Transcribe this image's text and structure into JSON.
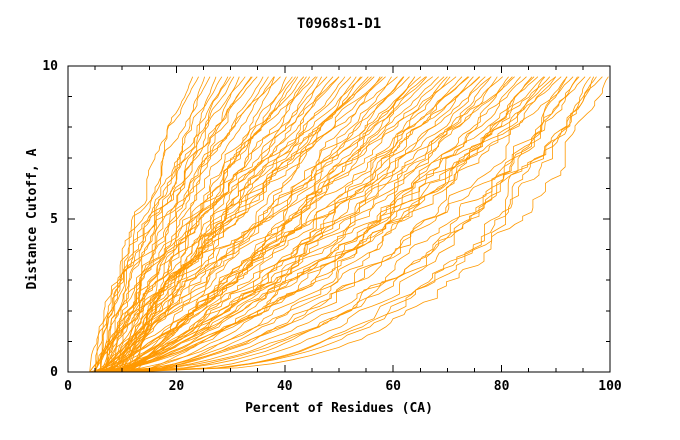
{
  "chart_data": {
    "type": "line",
    "title": "T0968s1-D1",
    "xlabel": "Percent of Residues (CA)",
    "ylabel": "Distance Cutoff, A",
    "xlim": [
      0,
      100
    ],
    "ylim": [
      0,
      10
    ],
    "x_ticks": [
      0,
      20,
      40,
      60,
      80,
      100
    ],
    "y_ticks": [
      0,
      5,
      10
    ],
    "x_minor_step": 5,
    "y_minor_step": 1,
    "grid": false,
    "legend": "none",
    "line_color": "#ff9900",
    "y_curve_max": 9.65,
    "series_format": [
      "x_at_y0",
      "x_at_ytop",
      "shape_exponent"
    ],
    "series": [
      [
        5,
        23,
        1.45
      ],
      [
        7,
        24.1,
        1.72
      ],
      [
        9,
        25.2,
        1.21
      ],
      [
        6,
        26.2,
        1.55
      ],
      [
        11,
        27.3,
        1.09
      ],
      [
        8,
        28.4,
        1.73
      ],
      [
        4,
        29.5,
        1.23
      ],
      [
        10,
        30.6,
        1.42
      ],
      [
        12,
        31.6,
        1.07
      ],
      [
        6,
        32.7,
        1.53
      ],
      [
        8,
        33.8,
        1.32
      ],
      [
        5,
        34.9,
        1.56
      ],
      [
        5,
        36,
        1.09
      ],
      [
        7,
        37,
        1.4
      ],
      [
        9,
        38.1,
        0.98
      ],
      [
        6,
        39.2,
        1.56
      ],
      [
        11,
        40.3,
        1.11
      ],
      [
        8,
        41.4,
        1.28
      ],
      [
        4,
        42.4,
        0.97
      ],
      [
        10,
        43.5,
        1.37
      ],
      [
        12,
        44.6,
        1.18
      ],
      [
        6,
        45.7,
        1.4
      ],
      [
        8,
        46.8,
        0.98
      ],
      [
        5,
        47.8,
        1.25
      ],
      [
        5,
        48.9,
        0.88
      ],
      [
        7,
        50,
        1.39
      ],
      [
        9,
        51.1,
        0.99
      ],
      [
        6,
        52.2,
        1.14
      ],
      [
        11,
        53.2,
        0.86
      ],
      [
        8,
        54.3,
        1.22
      ],
      [
        4,
        55.4,
        1.05
      ],
      [
        10,
        56.5,
        1.24
      ],
      [
        12,
        57.6,
        0.87
      ],
      [
        6,
        58.6,
        1.11
      ],
      [
        8,
        59.7,
        0.77
      ],
      [
        5,
        60.8,
        1.22
      ],
      [
        5,
        61.9,
        0.87
      ],
      [
        7,
        63,
        1.0
      ],
      [
        9,
        64,
        0.75
      ],
      [
        6,
        65.1,
        1.06
      ],
      [
        11,
        66.2,
        0.91
      ],
      [
        8,
        67.3,
        1.08
      ],
      [
        4,
        68.4,
        0.75
      ],
      [
        10,
        69.4,
        0.96
      ],
      [
        12,
        70.5,
        0.67
      ],
      [
        6,
        71.6,
        1.05
      ],
      [
        8,
        72.7,
        0.75
      ],
      [
        5,
        73.8,
        0.86
      ],
      [
        5,
        74.8,
        0.64
      ],
      [
        7,
        75.9,
        0.91
      ],
      [
        9,
        77,
        0.78
      ],
      [
        6,
        78.1,
        0.91
      ],
      [
        11,
        79.2,
        0.64
      ],
      [
        8,
        80.2,
        0.81
      ],
      [
        4,
        81.3,
        0.56
      ],
      [
        10,
        82.4,
        0.88
      ],
      [
        12,
        83.5,
        0.62
      ],
      [
        6,
        84.6,
        0.71
      ],
      [
        8,
        85.6,
        0.53
      ],
      [
        5,
        86.7,
        0.75
      ],
      [
        5,
        87.8,
        0.64
      ],
      [
        7,
        88.9,
        0.75
      ],
      [
        9,
        90,
        0.52
      ],
      [
        6,
        91,
        0.66
      ],
      [
        11,
        92.1,
        0.4
      ],
      [
        8,
        93.2,
        0.72
      ],
      [
        4,
        94.3,
        0.42
      ],
      [
        10,
        95.4,
        0.57
      ],
      [
        12,
        96.4,
        0.38
      ],
      [
        6,
        97.5,
        0.34
      ],
      [
        8,
        98.6,
        0.51
      ],
      [
        5,
        99.7,
        0.3
      ],
      [
        7,
        38,
        1.2
      ],
      [
        9,
        42,
        1.1
      ],
      [
        6,
        46,
        0.92
      ],
      [
        10,
        50,
        1.3
      ],
      [
        7,
        54,
        0.84
      ],
      [
        5,
        58,
        1.18
      ],
      [
        8,
        62,
        0.78
      ],
      [
        6,
        66,
        1.04
      ],
      [
        9,
        70,
        0.7
      ],
      [
        7,
        74,
        0.95
      ],
      [
        5,
        78,
        0.62
      ],
      [
        8,
        82,
        0.82
      ],
      [
        6,
        86,
        0.55
      ],
      [
        7,
        90,
        0.7
      ],
      [
        9,
        94,
        0.45
      ],
      [
        6,
        97,
        0.33
      ],
      [
        6,
        34,
        1.45
      ],
      [
        8,
        44,
        1.0
      ],
      [
        10,
        56,
        1.25
      ],
      [
        5,
        64,
        0.72
      ],
      [
        11,
        76,
        0.9
      ],
      [
        6,
        88,
        0.5
      ],
      [
        5,
        92,
        0.38
      ],
      [
        7,
        30,
        1.5
      ]
    ]
  }
}
